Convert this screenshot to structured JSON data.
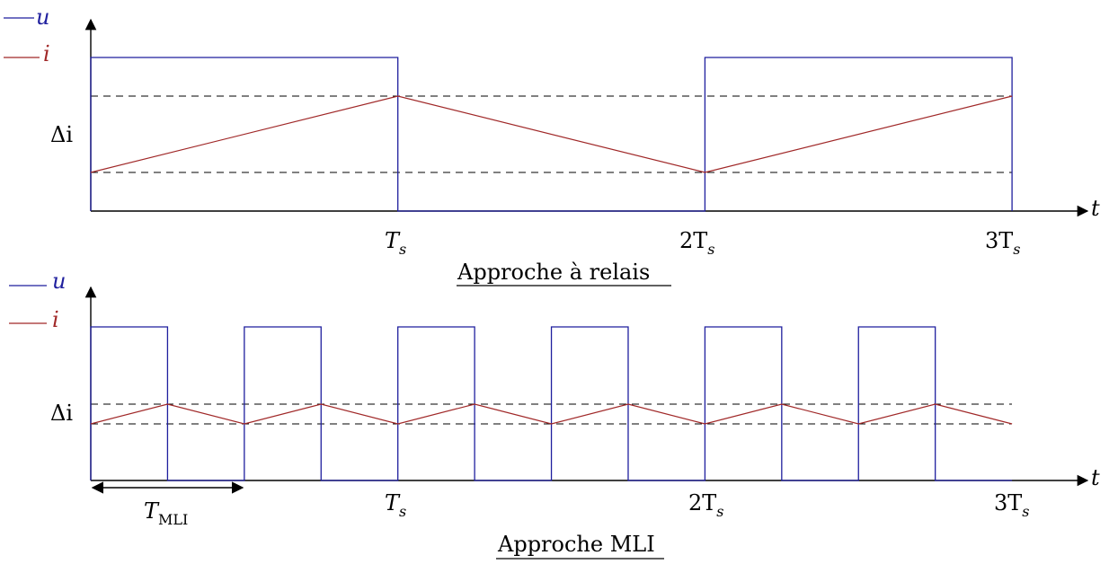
{
  "colors": {
    "u": "#1f1f9e",
    "i": "#a02828",
    "axis": "#000000",
    "dashed": "#000000"
  },
  "top": {
    "legend": [
      {
        "label": "u",
        "color": "#1f1f9e"
      },
      {
        "label": "i",
        "color": "#a02828"
      }
    ],
    "delta_label": "Δi",
    "t_label": "t",
    "ticks": [
      {
        "main": "T",
        "sub": "s",
        "x_period": 1
      },
      {
        "main": "2T",
        "sub": "s",
        "x_period": 2
      },
      {
        "main": "3T",
        "sub": "s",
        "x_period": 3
      }
    ],
    "caption": "Approche à relais",
    "u_wave": {
      "high_intervals": [
        [
          0,
          1
        ],
        [
          2,
          3
        ]
      ],
      "period_end": 3
    },
    "i_wave": {
      "points": [
        [
          0,
          0
        ],
        [
          1,
          1
        ],
        [
          2,
          0
        ],
        [
          3,
          1
        ]
      ]
    }
  },
  "bottom": {
    "legend": [
      {
        "label": "u",
        "color": "#1f1f9e"
      },
      {
        "label": "i",
        "color": "#a02828"
      }
    ],
    "delta_label": "Δi",
    "t_label": "t",
    "ticks": [
      {
        "main": "T",
        "sub": "s",
        "x_period": 1
      },
      {
        "main": "2T",
        "sub": "s",
        "x_period": 2
      },
      {
        "main": "3T",
        "sub": "s",
        "x_period": 3
      }
    ],
    "pwm_label_main": "T",
    "pwm_label_sub": "MLI",
    "caption": "Approche MLI",
    "u_wave": {
      "high_intervals": [
        [
          0,
          0.25
        ],
        [
          0.5,
          0.75
        ],
        [
          1.0,
          1.25
        ],
        [
          1.5,
          1.75
        ],
        [
          2.0,
          2.25
        ],
        [
          2.5,
          2.75
        ]
      ],
      "period_end": 3
    },
    "i_wave": {
      "points": [
        [
          0,
          0
        ],
        [
          0.25,
          1
        ],
        [
          0.5,
          0
        ],
        [
          0.75,
          1
        ],
        [
          1.0,
          0
        ],
        [
          1.25,
          1
        ],
        [
          1.5,
          0
        ],
        [
          1.75,
          1
        ],
        [
          2.0,
          0
        ],
        [
          2.25,
          1
        ],
        [
          2.5,
          0
        ],
        [
          2.75,
          1
        ],
        [
          3.0,
          0
        ]
      ]
    }
  }
}
